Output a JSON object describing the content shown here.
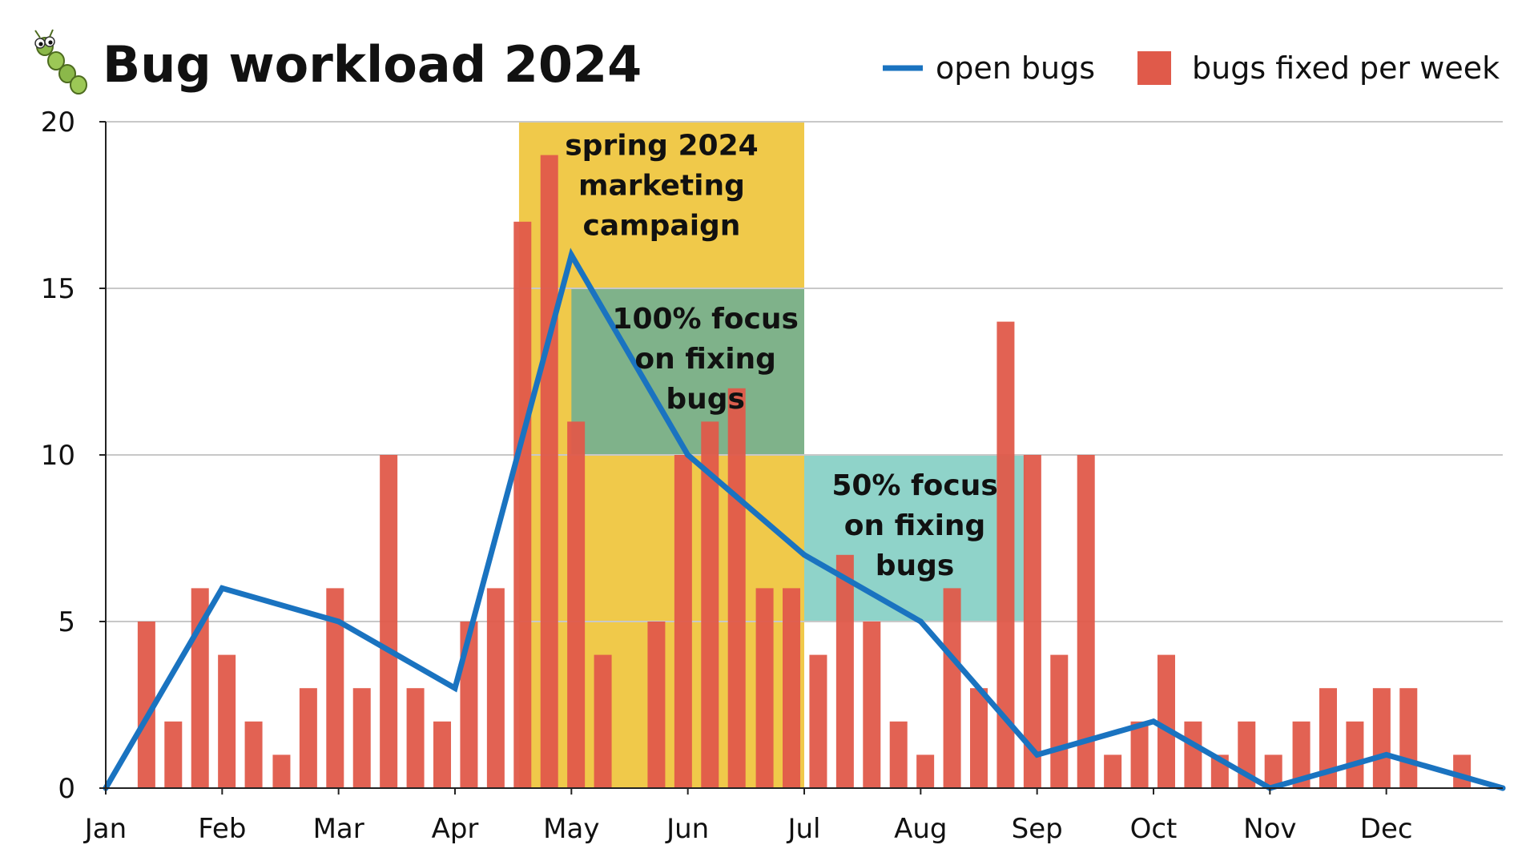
{
  "chart_data": {
    "type": "bar",
    "title": "Bug workload 2024",
    "title_icon": "caterpillar-bug-icon",
    "xlabel": "",
    "ylabel": "",
    "ylim": [
      0,
      20
    ],
    "yticks": [
      0,
      5,
      10,
      15,
      20
    ],
    "x_domain": [
      0,
      12
    ],
    "months": [
      "Jan",
      "Feb",
      "Mar",
      "Apr",
      "May",
      "Jun",
      "Jul",
      "Aug",
      "Sep",
      "Oct",
      "Nov",
      "Dec"
    ],
    "grid": true,
    "legend_position": "top-right",
    "legend": [
      {
        "label": "open bugs",
        "kind": "line",
        "color": "#1a73c0"
      },
      {
        "label": "bugs fixed per week",
        "kind": "bar",
        "color": "#e05a4a"
      }
    ],
    "series": [
      {
        "name": "bugs fixed per week",
        "type": "bar",
        "color": "#e05a4a",
        "x": [
          0.35,
          0.58,
          0.81,
          1.04,
          1.27,
          1.51,
          1.74,
          1.97,
          2.2,
          2.43,
          2.66,
          2.89,
          3.12,
          3.35,
          3.58,
          3.81,
          4.04,
          4.27,
          4.73,
          4.96,
          5.19,
          5.42,
          5.66,
          5.89,
          6.12,
          6.35,
          6.58,
          6.81,
          7.04,
          7.27,
          7.5,
          7.73,
          7.96,
          8.19,
          8.42,
          8.65,
          8.88,
          9.11,
          9.34,
          9.57,
          9.8,
          10.03,
          10.27,
          10.5,
          10.73,
          10.96,
          11.19,
          11.42,
          11.65,
          11.88
        ],
        "values": [
          5,
          2,
          6,
          4,
          2,
          1,
          3,
          6,
          3,
          10,
          3,
          2,
          5,
          6,
          17,
          19,
          11,
          4,
          5,
          10,
          11,
          12,
          6,
          6,
          4,
          7,
          5,
          2,
          1,
          6,
          3,
          14,
          10,
          4,
          10,
          1,
          2,
          4,
          2,
          1,
          2,
          1,
          2,
          3,
          2,
          3,
          3,
          0,
          1,
          0
        ]
      },
      {
        "name": "open bugs",
        "type": "line",
        "color": "#1a73c0",
        "x": [
          0,
          1,
          2,
          3,
          4,
          5,
          6,
          7,
          8,
          9,
          10,
          11,
          12
        ],
        "values": [
          0,
          6,
          5,
          3,
          16,
          10,
          7,
          5,
          1,
          2,
          0,
          1,
          0
        ]
      }
    ],
    "regions": [
      {
        "label_lines": [
          "spring 2024",
          "marketing",
          "campaign"
        ],
        "x": [
          3.55,
          6
        ],
        "y": [
          0,
          20
        ],
        "color": "#f0c94a"
      },
      {
        "label_lines": [
          "100% focus",
          "on fixing",
          "bugs"
        ],
        "x": [
          4,
          6
        ],
        "y": [
          10,
          15
        ],
        "color": "#7fb28a"
      },
      {
        "label_lines": [
          "50% focus",
          "on fixing",
          "bugs"
        ],
        "x": [
          6,
          7.9
        ],
        "y": [
          5,
          10
        ],
        "color": "#8fd3c9"
      }
    ]
  }
}
